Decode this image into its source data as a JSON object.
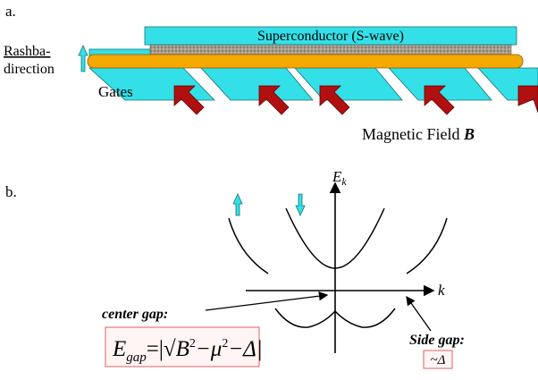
{
  "panel_a": {
    "label": "a.",
    "superconductor": "Superconductor (S-wave)",
    "rashba": [
      "Rashba-",
      "direction"
    ],
    "gates": "Gates",
    "field": {
      "text": "Magnetic Field ",
      "symbol": "B"
    }
  },
  "panel_b": {
    "label": "b.",
    "axis_y": {
      "symbol": "E",
      "sub": "k"
    },
    "axis_x": "k",
    "center_gap": {
      "label": "center gap:",
      "formula": {
        "base": "E",
        "sub": "gap",
        "parts": [
          "=|√",
          "B",
          "2",
          "−μ",
          "2",
          "−Δ|"
        ]
      }
    },
    "side_gap": {
      "label": "Side gap:",
      "value": "~Δ"
    }
  }
}
